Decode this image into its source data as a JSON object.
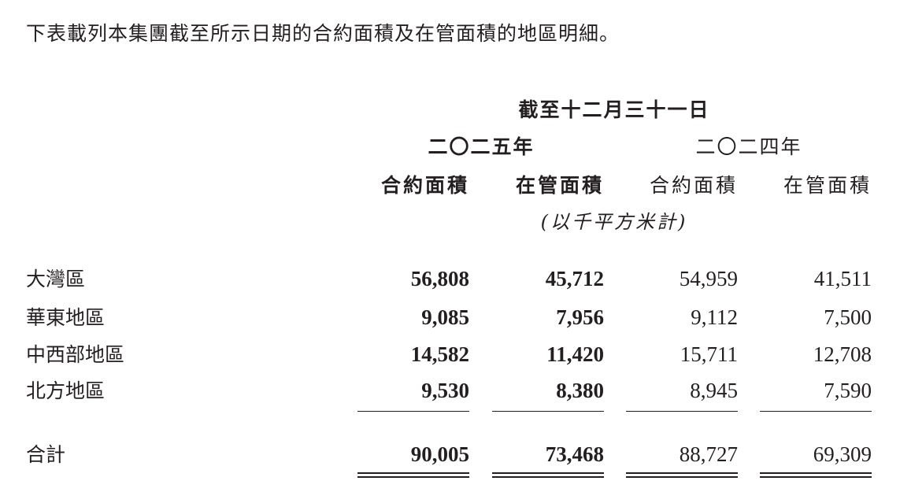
{
  "intro": "下表載列本集團截至所示日期的合約面積及在管面積的地區明細。",
  "header": {
    "period": "截至十二月三十一日",
    "years": [
      "二〇二五年",
      "二〇二四年"
    ],
    "columns": [
      "合約面積",
      "在管面積",
      "合約面積",
      "在管面積"
    ],
    "unit": "(以千平方米計)"
  },
  "rows": [
    {
      "label": "大灣區",
      "values": [
        "56,808",
        "45,712",
        "54,959",
        "41,511"
      ]
    },
    {
      "label": "華東地區",
      "values": [
        "9,085",
        "7,956",
        "9,112",
        "7,500"
      ]
    },
    {
      "label": "中西部地區",
      "values": [
        "14,582",
        "11,420",
        "15,711",
        "12,708"
      ]
    },
    {
      "label": "北方地區",
      "values": [
        "9,530",
        "8,380",
        "8,945",
        "7,590"
      ]
    }
  ],
  "total": {
    "label": "合計",
    "values": [
      "90,005",
      "73,468",
      "88,727",
      "69,309"
    ]
  }
}
